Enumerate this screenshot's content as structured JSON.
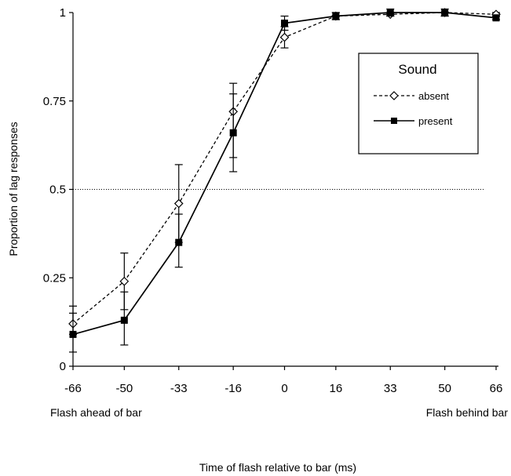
{
  "chart_data": {
    "type": "line",
    "x": [
      -66,
      -50,
      -33,
      -16,
      0,
      16,
      33,
      50,
      66
    ],
    "xticks": [
      "-66",
      "-50",
      "-33",
      "-16",
      "0",
      "16",
      "33",
      "50",
      "66"
    ],
    "xlim": [
      -66,
      66
    ],
    "ylim": [
      0,
      1
    ],
    "yticks": [
      {
        "v": 0,
        "label": "0"
      },
      {
        "v": 0.25,
        "label": "0.25"
      },
      {
        "v": 0.5,
        "label": "0.5"
      },
      {
        "v": 0.75,
        "label": "0.75"
      },
      {
        "v": 1,
        "label": "1"
      }
    ],
    "ylabel": "Proportion of lag responses",
    "xlabel": "Time of flash relative to bar (ms)",
    "x_left_note": "Flash ahead of  bar",
    "x_right_note": "Flash behind bar",
    "reference_line": {
      "y": 0.5,
      "style": "dotted"
    },
    "legend": {
      "title": "Sound",
      "position": "top-right"
    },
    "series": [
      {
        "name": "absent",
        "marker": "open-diamond",
        "line_style": "dashed",
        "values": [
          0.12,
          0.24,
          0.46,
          0.72,
          0.93,
          0.99,
          0.995,
          1.0,
          0.995
        ],
        "err_low": [
          0.09,
          0.16,
          0.35,
          0.59,
          0.9,
          0.98,
          0.99,
          0.99,
          0.99
        ],
        "err_high": [
          0.15,
          0.32,
          0.57,
          0.8,
          0.96,
          1.0,
          1.0,
          1.0,
          1.0
        ]
      },
      {
        "name": "present",
        "marker": "filled-square",
        "line_style": "solid",
        "values": [
          0.09,
          0.13,
          0.35,
          0.66,
          0.97,
          0.99,
          1.0,
          1.0,
          0.985
        ],
        "err_low": [
          0.04,
          0.06,
          0.28,
          0.55,
          0.95,
          0.98,
          0.99,
          0.99,
          0.98
        ],
        "err_high": [
          0.17,
          0.21,
          0.43,
          0.77,
          0.99,
          1.0,
          1.01,
          1.01,
          0.99
        ]
      }
    ]
  }
}
